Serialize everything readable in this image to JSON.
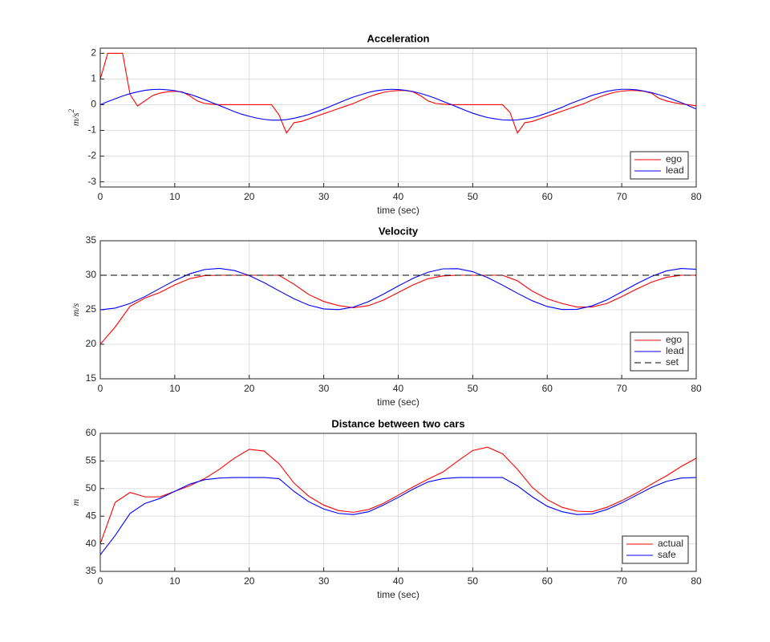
{
  "chart_data": [
    {
      "type": "line",
      "title": "Acceleration",
      "xlabel": "time (sec)",
      "ylabel": "m/s",
      "ylabel_exponent": "2",
      "x": [
        0,
        1,
        2,
        3,
        4,
        5,
        6,
        7,
        8,
        9,
        10,
        11,
        12,
        13,
        14,
        15,
        16,
        17,
        18,
        19,
        20,
        21,
        22,
        23,
        24,
        25,
        26,
        27,
        28,
        29,
        30,
        31,
        32,
        33,
        34,
        35,
        36,
        37,
        38,
        39,
        40,
        41,
        42,
        43,
        44,
        45,
        46,
        47,
        48,
        49,
        50,
        51,
        52,
        53,
        54,
        55,
        56,
        57,
        58,
        59,
        60,
        61,
        62,
        63,
        64,
        65,
        66,
        67,
        68,
        69,
        70,
        71,
        72,
        73,
        74,
        75,
        76,
        77,
        78,
        79,
        80
      ],
      "series": [
        {
          "name": "ego",
          "color": "#ff0000",
          "values": [
            1,
            2,
            2,
            2,
            0.4,
            -0.05,
            0.15,
            0.35,
            0.45,
            0.5,
            0.52,
            0.5,
            0.35,
            0.15,
            0.05,
            0.02,
            0,
            0,
            0,
            0,
            0,
            0,
            0,
            0,
            -0.4,
            -1.1,
            -0.7,
            -0.65,
            -0.55,
            -0.45,
            -0.35,
            -0.25,
            -0.15,
            -0.05,
            0.05,
            0.18,
            0.3,
            0.4,
            0.48,
            0.53,
            0.55,
            0.55,
            0.5,
            0.35,
            0.15,
            0.05,
            0.02,
            0,
            0,
            0,
            0,
            0,
            0,
            0,
            0,
            -0.3,
            -1.1,
            -0.7,
            -0.65,
            -0.55,
            -0.45,
            -0.35,
            -0.25,
            -0.15,
            -0.05,
            0.05,
            0.18,
            0.3,
            0.4,
            0.48,
            0.53,
            0.55,
            0.55,
            0.52,
            0.45,
            0.25,
            0.15,
            0.08,
            0.03,
            0,
            -0.05
          ]
        },
        {
          "name": "lead",
          "color": "#0000ff",
          "values": [
            0,
            0.12,
            0.23,
            0.34,
            0.43,
            0.5,
            0.56,
            0.59,
            0.6,
            0.58,
            0.55,
            0.48,
            0.41,
            0.31,
            0.2,
            0.08,
            -0.03,
            -0.15,
            -0.27,
            -0.37,
            -0.45,
            -0.52,
            -0.57,
            -0.6,
            -0.6,
            -0.58,
            -0.53,
            -0.46,
            -0.38,
            -0.28,
            -0.17,
            -0.05,
            0.07,
            0.19,
            0.3,
            0.39,
            0.48,
            0.54,
            0.58,
            0.6,
            0.59,
            0.56,
            0.51,
            0.44,
            0.35,
            0.25,
            0.13,
            0.02,
            -0.1,
            -0.22,
            -0.33,
            -0.42,
            -0.5,
            -0.55,
            -0.59,
            -0.6,
            -0.59,
            -0.55,
            -0.5,
            -0.42,
            -0.32,
            -0.21,
            -0.1,
            0.03,
            0.14,
            0.25,
            0.36,
            0.44,
            0.52,
            0.57,
            0.6,
            0.6,
            0.58,
            0.53,
            0.47,
            0.39,
            0.3,
            0.19,
            0.08,
            -0.04,
            -0.17
          ]
        }
      ],
      "xlim": [
        0,
        80
      ],
      "xticks": [
        0,
        10,
        20,
        30,
        40,
        50,
        60,
        70,
        80
      ],
      "ylim": [
        -3.2,
        2.2
      ],
      "yticks": [
        -3,
        -2,
        -1,
        0,
        1,
        2
      ],
      "grid": true,
      "legend": "southeast"
    },
    {
      "type": "line",
      "title": "Velocity",
      "xlabel": "time (sec)",
      "ylabel": "m/s",
      "x": [
        0,
        2,
        4,
        6,
        8,
        10,
        12,
        14,
        16,
        18,
        20,
        22,
        24,
        26,
        28,
        30,
        32,
        34,
        36,
        38,
        40,
        42,
        44,
        46,
        48,
        50,
        52,
        54,
        56,
        58,
        60,
        62,
        64,
        66,
        68,
        70,
        72,
        74,
        76,
        78,
        80
      ],
      "series": [
        {
          "name": "ego",
          "color": "#ff0000",
          "values": [
            20,
            22.5,
            25.5,
            26.7,
            27.5,
            28.6,
            29.5,
            29.95,
            30,
            30,
            30,
            30,
            30,
            28.7,
            27.2,
            26.2,
            25.6,
            25.3,
            25.6,
            26.4,
            27.5,
            28.6,
            29.5,
            29.9,
            30,
            30,
            30,
            30,
            29.2,
            27.7,
            26.6,
            25.9,
            25.4,
            25.4,
            25.9,
            26.9,
            28,
            29,
            29.7,
            30,
            30
          ]
        },
        {
          "name": "lead",
          "color": "#0000ff",
          "values": [
            25,
            25.24,
            25.91,
            26.91,
            28.09,
            29.25,
            30.21,
            30.83,
            30.99,
            30.69,
            29.96,
            28.92,
            27.74,
            26.6,
            25.67,
            25.12,
            25.02,
            25.39,
            26.18,
            27.25,
            28.44,
            29.56,
            30.44,
            30.93,
            30.95,
            30.52,
            29.67,
            28.57,
            27.39,
            26.3,
            25.47,
            25.04,
            25.07,
            25.56,
            26.43,
            27.59,
            28.77,
            29.83,
            30.63,
            30.98,
            30.87
          ]
        },
        {
          "name": "set",
          "color": "#000000",
          "linestyle": "dashed",
          "x": [
            0,
            80
          ],
          "values": [
            30,
            30
          ]
        }
      ],
      "xlim": [
        0,
        80
      ],
      "xticks": [
        0,
        10,
        20,
        30,
        40,
        50,
        60,
        70,
        80
      ],
      "ylim": [
        15,
        35
      ],
      "yticks": [
        15,
        20,
        25,
        30,
        35
      ],
      "grid": true,
      "legend": "southeast"
    },
    {
      "type": "line",
      "title": "Distance between two cars",
      "xlabel": "time (sec)",
      "ylabel": "m",
      "x": [
        0,
        2,
        4,
        6,
        8,
        10,
        12,
        14,
        16,
        18,
        20,
        22,
        24,
        26,
        28,
        30,
        32,
        34,
        36,
        38,
        40,
        42,
        44,
        46,
        48,
        50,
        52,
        54,
        56,
        58,
        60,
        62,
        64,
        66,
        68,
        70,
        72,
        74,
        76,
        78,
        80
      ],
      "series": [
        {
          "name": "actual",
          "color": "#ff0000",
          "values": [
            40,
            47.5,
            49.3,
            48.5,
            48.5,
            49.5,
            50.5,
            51.8,
            53.5,
            55.5,
            57.1,
            56.8,
            54.5,
            51,
            48.6,
            47,
            46,
            45.7,
            46.2,
            47.3,
            48.8,
            50.3,
            51.7,
            53,
            55,
            56.9,
            57.5,
            56.3,
            53.5,
            50.2,
            48,
            46.6,
            45.9,
            45.8,
            46.6,
            47.8,
            49.2,
            50.8,
            52.3,
            54,
            55.5
          ]
        },
        {
          "name": "safe",
          "color": "#0000ff",
          "values": [
            38,
            41.5,
            45.5,
            47.3,
            48.2,
            49.5,
            50.8,
            51.6,
            51.9,
            52,
            52,
            52,
            51.8,
            49.5,
            47.6,
            46.3,
            45.5,
            45.3,
            45.8,
            47,
            48.4,
            49.9,
            51.2,
            51.8,
            52,
            52,
            52,
            52,
            50.5,
            48.5,
            46.8,
            45.8,
            45.3,
            45.4,
            46.2,
            47.4,
            48.8,
            50.2,
            51.3,
            51.9,
            52
          ]
        }
      ],
      "xlim": [
        0,
        80
      ],
      "xticks": [
        0,
        10,
        20,
        30,
        40,
        50,
        60,
        70,
        80
      ],
      "ylim": [
        35,
        60
      ],
      "yticks": [
        35,
        40,
        45,
        50,
        55,
        60
      ],
      "grid": true,
      "legend": "southeast"
    }
  ]
}
